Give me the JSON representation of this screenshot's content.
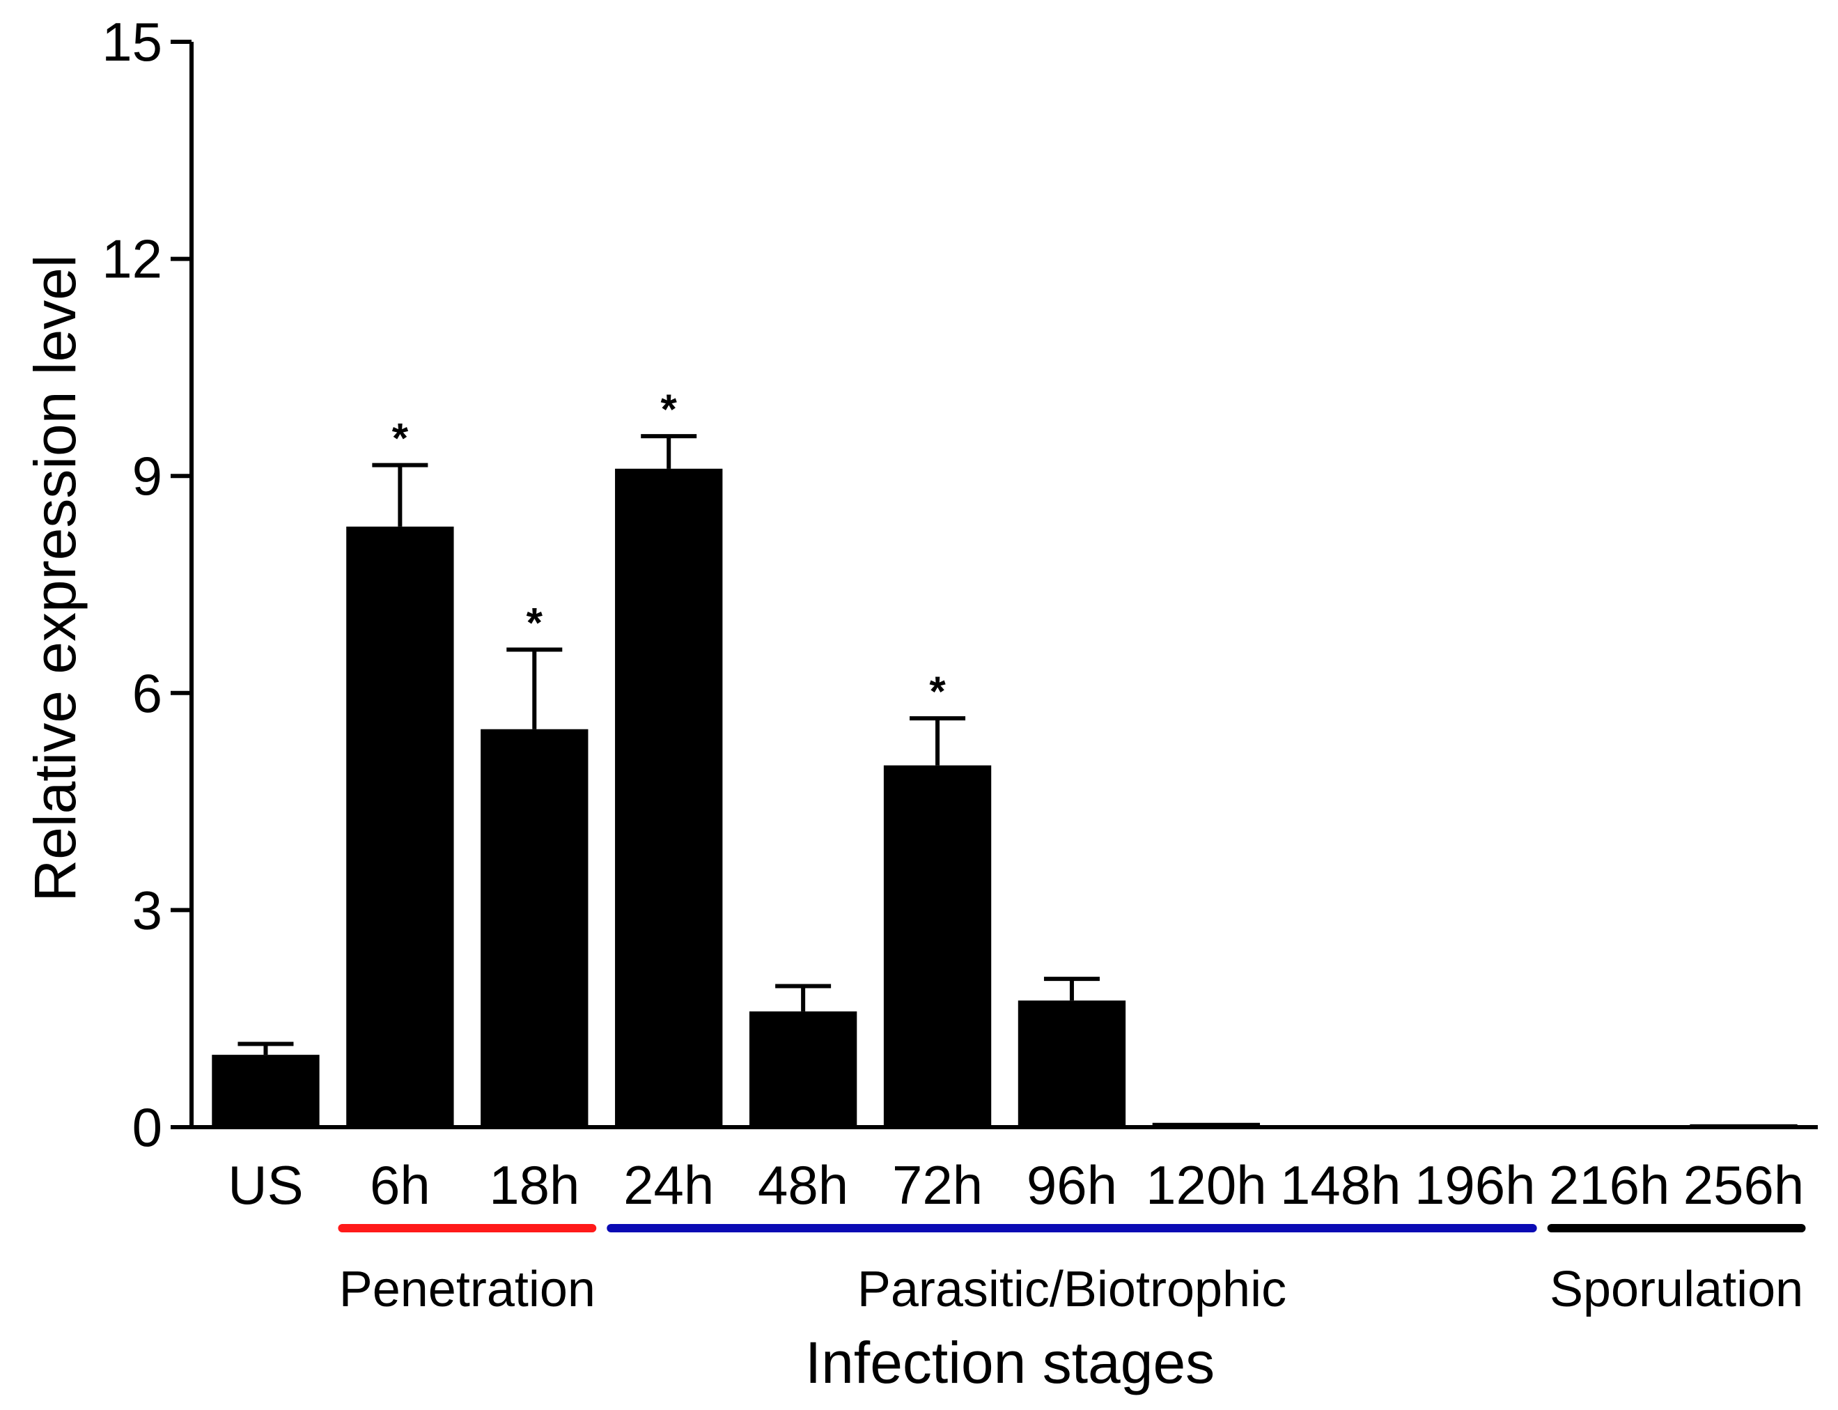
{
  "chart_data": {
    "type": "bar",
    "title": "",
    "xlabel": "Infection stages",
    "ylabel": "Relative expression level",
    "ylim": [
      0,
      15
    ],
    "yticks": [
      0,
      3,
      6,
      9,
      12,
      15
    ],
    "yticks_labels": [
      "0",
      "3",
      "6",
      "9",
      "12",
      "15"
    ],
    "categories": [
      "US",
      "6h",
      "18h",
      "24h",
      "48h",
      "72h",
      "96h",
      "120h",
      "148h",
      "196h",
      "216h",
      "256h"
    ],
    "values": [
      1.0,
      8.3,
      5.5,
      9.1,
      1.6,
      5.0,
      1.75,
      0.06,
      0.02,
      0.02,
      0.02,
      0.04
    ],
    "errors": [
      0.15,
      0.85,
      1.1,
      0.45,
      0.35,
      0.65,
      0.3,
      0.0,
      0.0,
      0.0,
      0.0,
      0.0
    ],
    "significance": [
      "",
      "*",
      "*",
      "*",
      "",
      "*",
      "",
      "",
      "",
      "",
      "",
      ""
    ],
    "bar_color": "#000000",
    "stages": [
      {
        "label": "Penetration",
        "start": "6h",
        "end": "18h",
        "color": "#ff1a1a"
      },
      {
        "label": "Parasitic/Biotrophic",
        "start": "24h",
        "end": "196h",
        "color": "#0a0ab4"
      },
      {
        "label": "Sporulation",
        "start": "216h",
        "end": "256h",
        "color": "#000000"
      }
    ]
  }
}
